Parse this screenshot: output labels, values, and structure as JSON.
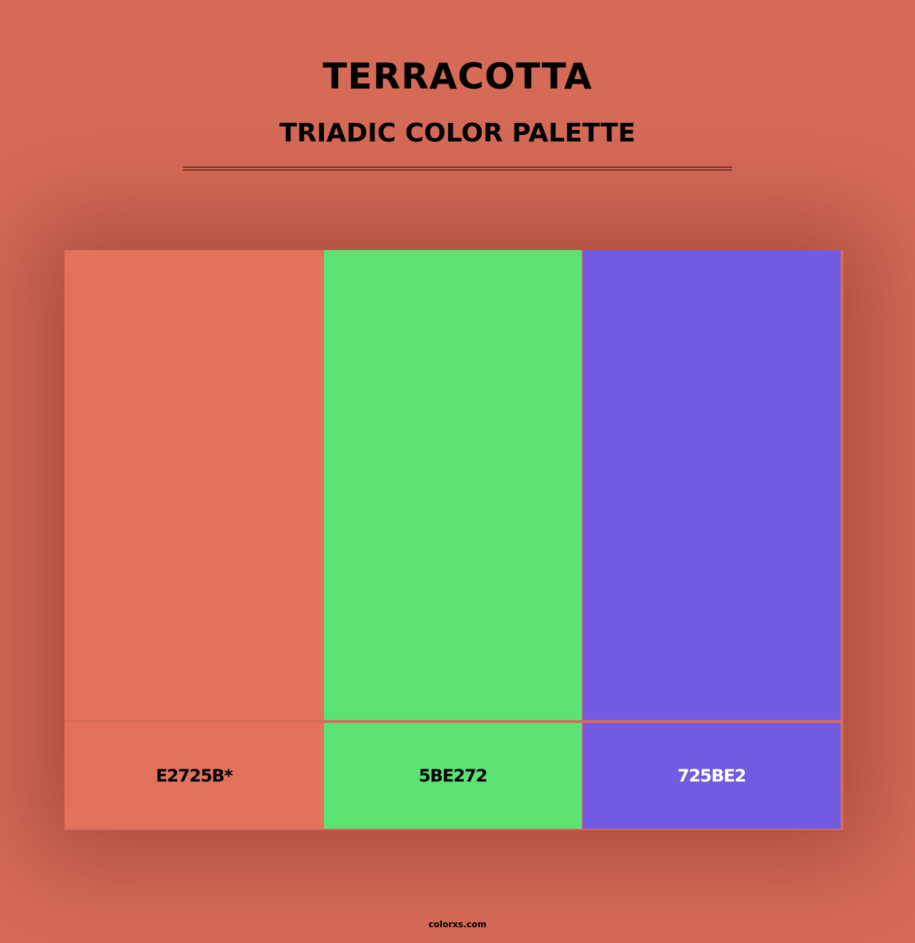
{
  "title": "TERRACOTTA",
  "subtitle": "TRIADIC COLOR PALETTE",
  "colors": [
    {
      "hex": "#E2725B",
      "label": "E2725B*",
      "text_color": "#000000"
    },
    {
      "hex": "#5BE272",
      "label": "5BE272",
      "text_color": "#000000"
    },
    {
      "hex": "#725BE2",
      "label": "725BE2",
      "text_color": "#ffffff"
    }
  ],
  "background": "#d56b57",
  "footer": "colorxs.com"
}
